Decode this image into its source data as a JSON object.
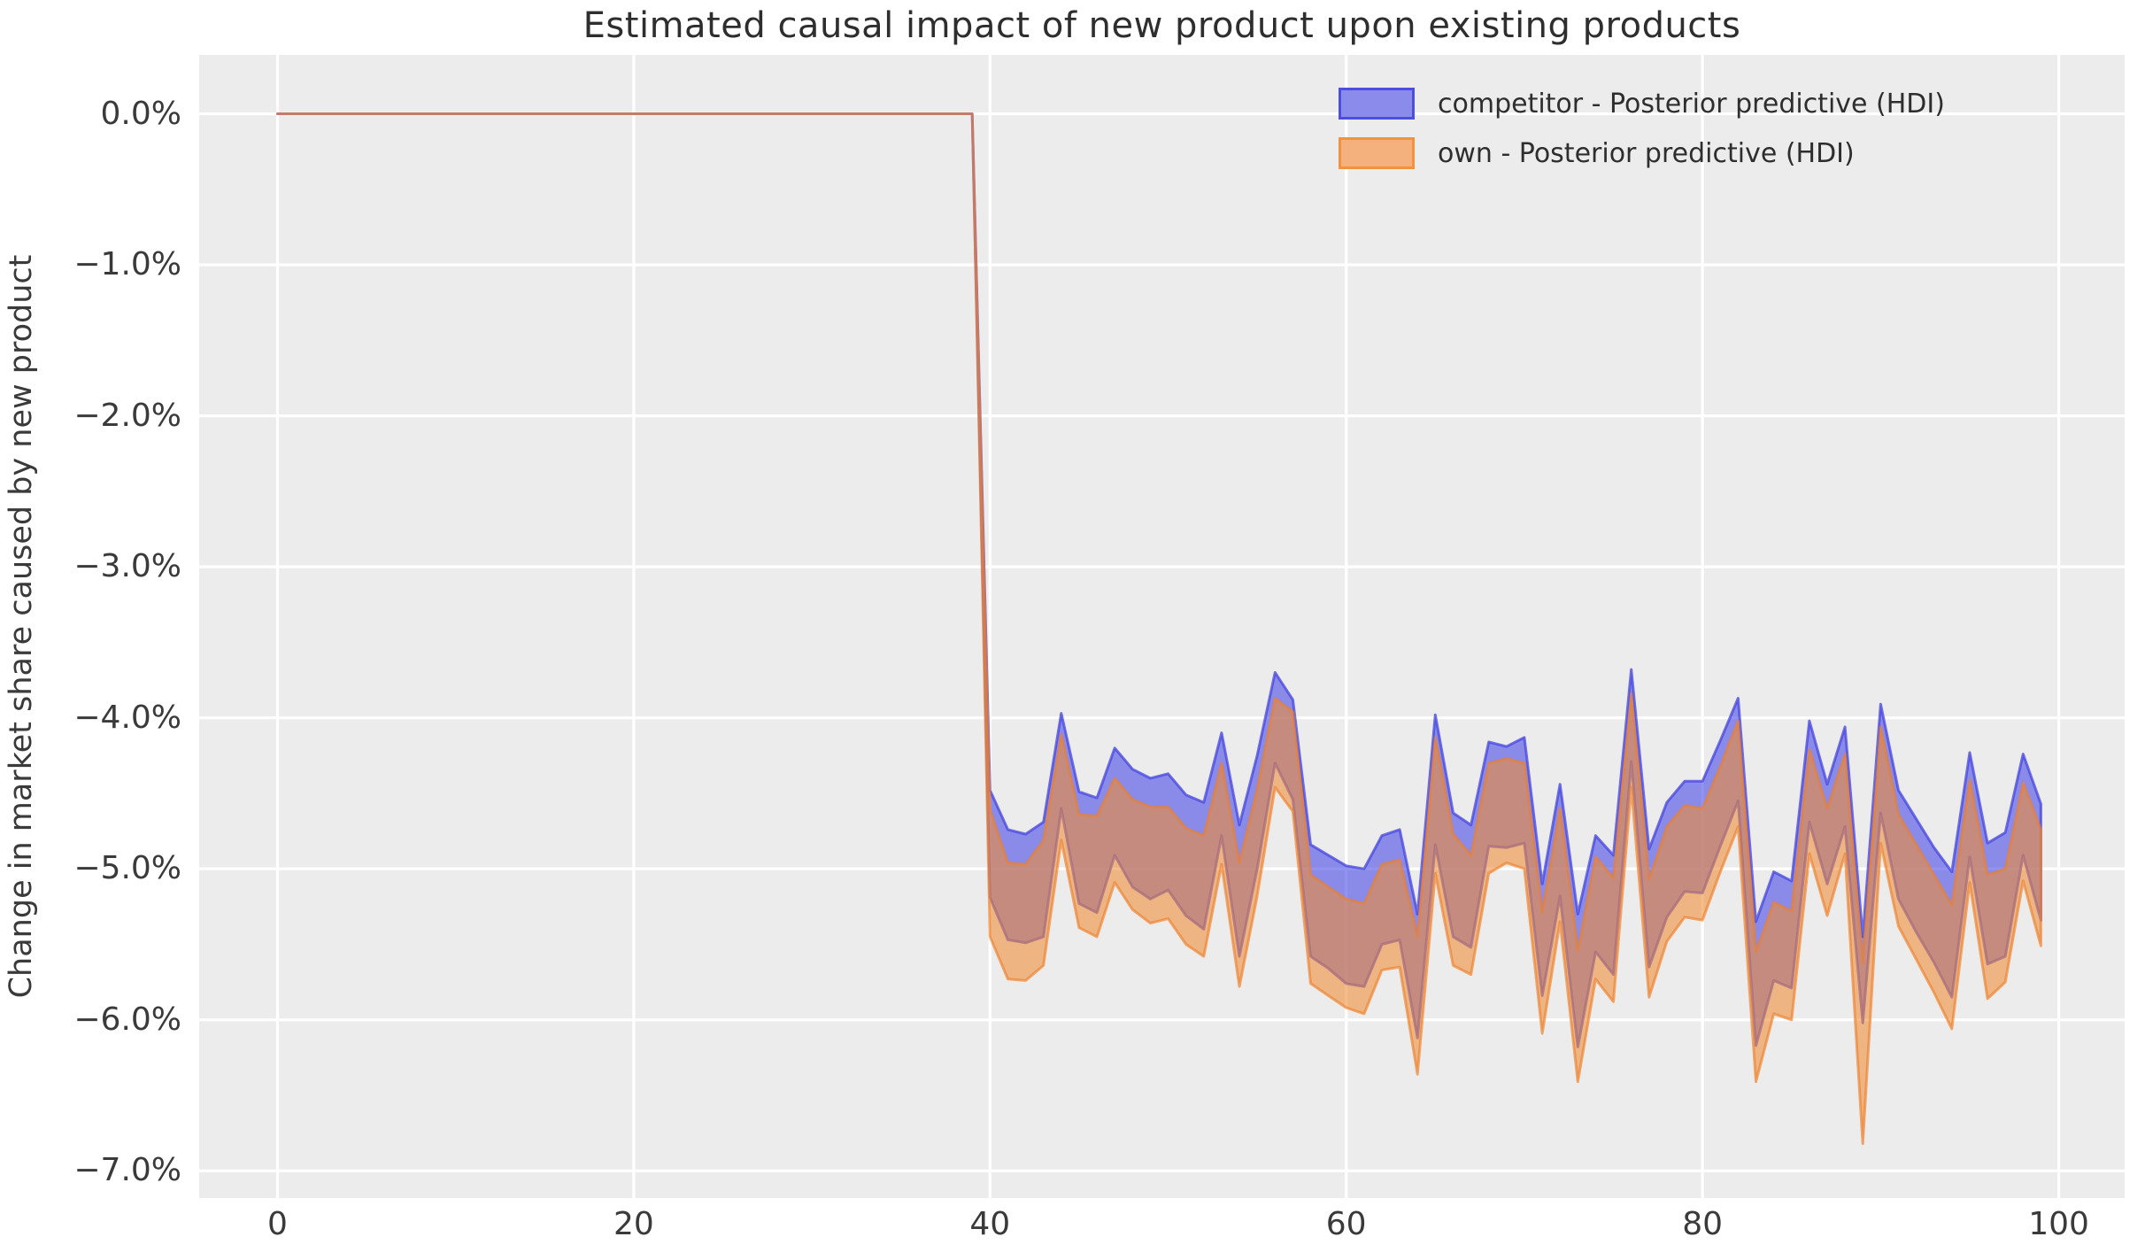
{
  "figure": {
    "background": "#FFFFFF"
  },
  "chart_data": {
    "type": "area",
    "title": "Estimated causal impact of new product upon existing products",
    "xlabel": "",
    "ylabel": "Change in market share caused by new product",
    "value_unit": "percent",
    "plot_background": "#ECECEC",
    "gridline_color": "#FFFFFF",
    "text_color": "#3a3a3a",
    "grid": true,
    "legend_position": "upper right",
    "xlim": [
      -4.4,
      103.7
    ],
    "ylim": [
      -7.18,
      0.39
    ],
    "x_ticks": [
      0,
      20,
      40,
      60,
      80,
      100
    ],
    "x_tick_labels": [
      "0",
      "20",
      "40",
      "60",
      "80",
      "100"
    ],
    "y_ticks": [
      0,
      -1,
      -2,
      -3,
      -4,
      -5,
      -6,
      -7
    ],
    "y_tick_labels": [
      "0.0%",
      "−1.0%",
      "−2.0%",
      "−3.0%",
      "−4.0%",
      "−5.0%",
      "−6.0%",
      "−7.0%"
    ],
    "pre_period": {
      "x_start": 0,
      "x_end": 39,
      "value": 0.0
    },
    "post_x_start": 40,
    "series": [
      {
        "key": "competitor",
        "name": "competitor - Posterior predictive (HDI)",
        "band_type": "HDI",
        "fill": "rgba(74,74,230,0.60)",
        "edge": "rgba(68,68,224,0.75)",
        "swatch_fill": "#8b8bec",
        "swatch_border": "#4d4de0",
        "upper": [
          -4.48,
          -4.74,
          -4.77,
          -4.69,
          -3.97,
          -4.49,
          -4.53,
          -4.2,
          -4.34,
          -4.4,
          -4.37,
          -4.51,
          -4.56,
          -4.1,
          -4.71,
          -4.25,
          -3.7,
          -3.88,
          -4.84,
          -4.91,
          -4.98,
          -5.0,
          -4.78,
          -4.74,
          -5.3,
          -3.98,
          -4.63,
          -4.71,
          -4.16,
          -4.19,
          -4.13,
          -5.1,
          -4.44,
          -5.3,
          -4.78,
          -4.91,
          -3.68,
          -4.87,
          -4.56,
          -4.42,
          -4.42,
          -4.15,
          -3.87,
          -5.35,
          -5.02,
          -5.08,
          -4.02,
          -4.44,
          -4.06,
          -5.45,
          -3.91,
          -4.48,
          -4.67,
          -4.86,
          -5.02,
          -4.23,
          -4.83,
          -4.76,
          -4.24,
          -4.57
        ],
        "lower": [
          -5.19,
          -5.47,
          -5.49,
          -5.45,
          -4.6,
          -5.23,
          -5.29,
          -4.91,
          -5.12,
          -5.2,
          -5.14,
          -5.31,
          -5.4,
          -4.78,
          -5.58,
          -5.0,
          -4.3,
          -4.54,
          -5.58,
          -5.66,
          -5.76,
          -5.78,
          -5.5,
          -5.47,
          -6.12,
          -4.84,
          -5.45,
          -5.52,
          -4.85,
          -4.86,
          -4.83,
          -5.84,
          -5.18,
          -6.18,
          -5.55,
          -5.7,
          -4.29,
          -5.65,
          -5.32,
          -5.15,
          -5.16,
          -4.85,
          -4.55,
          -6.17,
          -5.74,
          -5.79,
          -4.69,
          -5.1,
          -4.72,
          -6.02,
          -4.63,
          -5.2,
          -5.42,
          -5.62,
          -5.85,
          -4.92,
          -5.63,
          -5.58,
          -4.91,
          -5.34
        ]
      },
      {
        "key": "own",
        "name": "own - Posterior predictive (HDI)",
        "band_type": "HDI",
        "fill": "rgba(239,140,51,0.58)",
        "edge": "rgba(238,127,43,0.65)",
        "swatch_fill": "#f4b17e",
        "swatch_border": "#f0923e",
        "upper": [
          -4.61,
          -4.96,
          -4.97,
          -4.81,
          -4.11,
          -4.64,
          -4.65,
          -4.4,
          -4.54,
          -4.59,
          -4.59,
          -4.73,
          -4.78,
          -4.3,
          -4.96,
          -4.47,
          -3.87,
          -3.96,
          -5.04,
          -5.12,
          -5.2,
          -5.23,
          -4.97,
          -4.94,
          -5.45,
          -4.13,
          -4.77,
          -4.91,
          -4.3,
          -4.27,
          -4.3,
          -5.29,
          -4.6,
          -5.54,
          -4.92,
          -5.06,
          -3.84,
          -5.07,
          -4.72,
          -4.58,
          -4.6,
          -4.32,
          -4.02,
          -5.55,
          -5.22,
          -5.28,
          -4.21,
          -4.6,
          -4.24,
          -5.62,
          -4.06,
          -4.64,
          -4.84,
          -5.04,
          -5.24,
          -4.41,
          -5.04,
          -5.0,
          -4.43,
          -4.74
        ],
        "lower": [
          -5.45,
          -5.73,
          -5.74,
          -5.64,
          -4.81,
          -5.39,
          -5.45,
          -5.09,
          -5.27,
          -5.36,
          -5.33,
          -5.5,
          -5.58,
          -4.97,
          -5.78,
          -5.18,
          -4.46,
          -4.62,
          -5.76,
          -5.84,
          -5.92,
          -5.96,
          -5.67,
          -5.65,
          -6.36,
          -5.03,
          -5.64,
          -5.7,
          -5.03,
          -4.96,
          -5.0,
          -6.09,
          -5.35,
          -6.41,
          -5.73,
          -5.88,
          -4.46,
          -5.85,
          -5.48,
          -5.32,
          -5.34,
          -5.02,
          -4.72,
          -6.41,
          -5.96,
          -6.0,
          -4.9,
          -5.31,
          -4.9,
          -6.82,
          -4.83,
          -5.38,
          -5.6,
          -5.82,
          -6.06,
          -5.09,
          -5.86,
          -5.75,
          -5.08,
          -5.51
        ]
      }
    ]
  }
}
